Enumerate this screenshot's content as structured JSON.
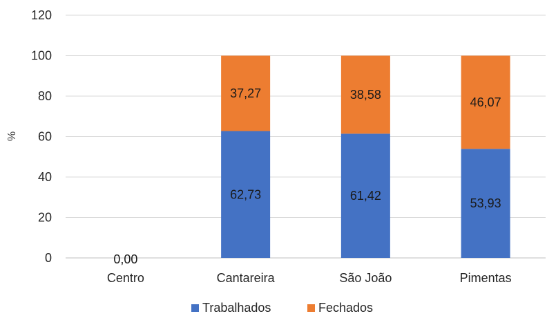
{
  "chart_data": {
    "type": "bar",
    "stacked": true,
    "categories": [
      "Centro",
      "Cantareira",
      "São João",
      "Pimentas"
    ],
    "series": [
      {
        "name": "Trabalhados",
        "color": "#4472C4",
        "values": [
          0,
          62.73,
          61.42,
          53.93
        ],
        "labels": [
          "0,00",
          "62,73",
          "61,42",
          "53,93"
        ]
      },
      {
        "name": "Fechados",
        "color": "#ED7D31",
        "values": [
          0,
          37.27,
          38.58,
          46.07
        ],
        "labels": [
          "",
          "37,27",
          "38,58",
          "46,07"
        ]
      }
    ],
    "title": "",
    "xlabel": "",
    "ylabel": "%",
    "ylim": [
      0,
      120
    ],
    "yticks": [
      0,
      20,
      40,
      60,
      80,
      100,
      120
    ],
    "grid": true,
    "legend_position": "bottom"
  }
}
